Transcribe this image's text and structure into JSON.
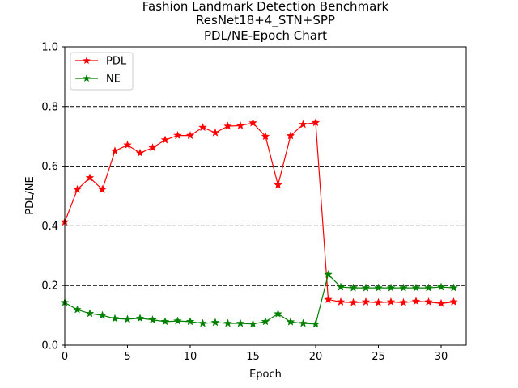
{
  "chart_data": {
    "type": "line",
    "title_lines": [
      "Fashion Landmark Detection Benchmark",
      "ResNet18+4_STN+SPP",
      "PDL/NE-Epoch Chart"
    ],
    "xlabel": "Epoch",
    "ylabel": "PDL/NE",
    "xlim": [
      0,
      32
    ],
    "ylim": [
      0,
      1
    ],
    "xticks": [
      0,
      5,
      10,
      15,
      20,
      25,
      30
    ],
    "yticks": [
      0.0,
      0.2,
      0.4,
      0.6,
      0.8,
      1.0
    ],
    "ytick_labels": [
      "0.0",
      "0.2",
      "0.4",
      "0.6",
      "0.8",
      "1.0"
    ],
    "grid": "horizontal dashed at y-ticks",
    "legend_position": "upper-left",
    "marker": "star",
    "x": [
      0,
      1,
      2,
      3,
      4,
      5,
      6,
      7,
      8,
      9,
      10,
      11,
      12,
      13,
      14,
      15,
      16,
      17,
      18,
      19,
      20,
      21,
      22,
      23,
      24,
      25,
      26,
      27,
      28,
      29,
      30,
      31
    ],
    "series": [
      {
        "name": "PDL",
        "color": "#ff0000",
        "values": [
          0.413,
          0.522,
          0.561,
          0.522,
          0.651,
          0.671,
          0.644,
          0.662,
          0.688,
          0.703,
          0.703,
          0.73,
          0.712,
          0.734,
          0.736,
          0.745,
          0.7,
          0.537,
          0.702,
          0.74,
          0.746,
          0.153,
          0.145,
          0.143,
          0.145,
          0.143,
          0.145,
          0.143,
          0.147,
          0.145,
          0.14,
          0.145
        ]
      },
      {
        "name": "NE",
        "color": "#008000",
        "values": [
          0.143,
          0.119,
          0.106,
          0.1,
          0.089,
          0.087,
          0.09,
          0.085,
          0.079,
          0.081,
          0.079,
          0.073,
          0.076,
          0.073,
          0.073,
          0.071,
          0.079,
          0.105,
          0.078,
          0.073,
          0.071,
          0.237,
          0.195,
          0.192,
          0.192,
          0.192,
          0.192,
          0.192,
          0.192,
          0.192,
          0.195,
          0.192
        ]
      }
    ]
  }
}
